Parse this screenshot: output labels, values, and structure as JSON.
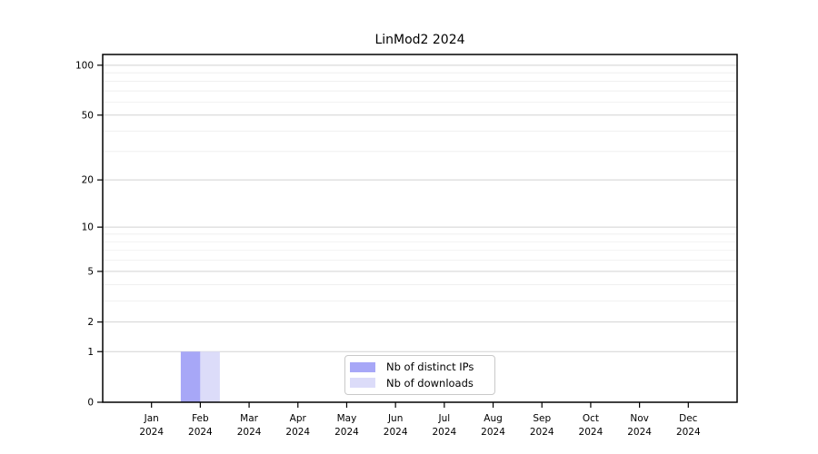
{
  "chart_data": {
    "type": "bar",
    "title": "LinMod2 2024",
    "categories": [
      "Jan",
      "Feb",
      "Mar",
      "Apr",
      "May",
      "Jun",
      "Jul",
      "Aug",
      "Sep",
      "Oct",
      "Nov",
      "Dec"
    ],
    "x_tick_year_line": "2024",
    "series": [
      {
        "name": "Nb of distinct IPs",
        "color": "#a7a7f7",
        "values": [
          0,
          1,
          0,
          0,
          0,
          0,
          0,
          0,
          0,
          0,
          0,
          0
        ]
      },
      {
        "name": "Nb of downloads",
        "color": "#dcdcf9",
        "values": [
          0,
          1,
          0,
          0,
          0,
          0,
          0,
          0,
          0,
          0,
          0,
          0
        ]
      }
    ],
    "y_scale": "log1p",
    "y_ticks": [
      0,
      1,
      2,
      5,
      10,
      20,
      50,
      100
    ],
    "y_tick_labels": [
      "0",
      "1",
      "2",
      "5",
      "10",
      "20",
      "50",
      "100"
    ],
    "y_minor_gridlines": [
      3,
      4,
      6,
      7,
      8,
      9,
      30,
      40,
      60,
      70,
      80,
      90
    ],
    "ylim": [
      0,
      116
    ],
    "grid": "horizontal-only",
    "legend_position": "lower center",
    "colors": {
      "background": "#ffffff",
      "axis": "#000000",
      "text": "#000000",
      "major_grid": "#d2d2d2",
      "minor_grid": "#eeeeee"
    }
  }
}
